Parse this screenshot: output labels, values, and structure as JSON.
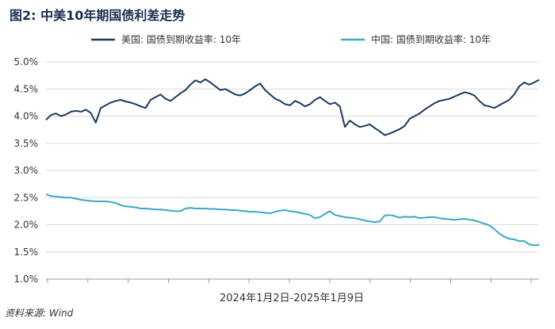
{
  "chart_data": {
    "type": "line",
    "title": "图2: 中美10年期国债利差走势",
    "xlabel": "2024年1月2日-2025年1月9日",
    "ylim": [
      0.01,
      0.05
    ],
    "y_ticks": [
      "1.0%",
      "1.5%",
      "2.0%",
      "2.5%",
      "3.0%",
      "3.5%",
      "4.0%",
      "4.5%",
      "5.0%"
    ],
    "grid": "horizontal",
    "legend_position": "top",
    "series": [
      {
        "name": "美国: 国债到期收益率: 10年",
        "color": "#1b3a5e",
        "values": [
          3.93,
          4.02,
          4.05,
          4.0,
          4.03,
          4.08,
          4.1,
          4.08,
          4.12,
          4.06,
          3.88,
          4.15,
          4.2,
          4.25,
          4.28,
          4.3,
          4.27,
          4.25,
          4.22,
          4.18,
          4.15,
          4.3,
          4.35,
          4.4,
          4.32,
          4.28,
          4.35,
          4.42,
          4.48,
          4.58,
          4.66,
          4.62,
          4.68,
          4.62,
          4.55,
          4.48,
          4.5,
          4.45,
          4.4,
          4.38,
          4.42,
          4.48,
          4.55,
          4.6,
          4.48,
          4.4,
          4.32,
          4.28,
          4.22,
          4.2,
          4.28,
          4.24,
          4.18,
          4.22,
          4.3,
          4.35,
          4.28,
          4.22,
          4.25,
          4.18,
          3.8,
          3.92,
          3.85,
          3.8,
          3.82,
          3.85,
          3.78,
          3.72,
          3.65,
          3.68,
          3.72,
          3.76,
          3.82,
          3.95,
          4.0,
          4.05,
          4.12,
          4.18,
          4.24,
          4.28,
          4.3,
          4.32,
          4.36,
          4.4,
          4.44,
          4.42,
          4.38,
          4.28,
          4.2,
          4.18,
          4.15,
          4.2,
          4.25,
          4.3,
          4.4,
          4.55,
          4.62,
          4.58,
          4.62,
          4.67
        ]
      },
      {
        "name": "中国: 国债到期收益率: 10年",
        "color": "#3aa8c9",
        "values": [
          2.56,
          2.53,
          2.52,
          2.51,
          2.5,
          2.5,
          2.48,
          2.46,
          2.45,
          2.44,
          2.43,
          2.43,
          2.43,
          2.42,
          2.4,
          2.36,
          2.34,
          2.33,
          2.32,
          2.3,
          2.3,
          2.29,
          2.28,
          2.28,
          2.27,
          2.26,
          2.25,
          2.25,
          2.3,
          2.31,
          2.3,
          2.3,
          2.3,
          2.29,
          2.29,
          2.28,
          2.28,
          2.27,
          2.27,
          2.26,
          2.25,
          2.24,
          2.24,
          2.23,
          2.22,
          2.21,
          2.24,
          2.26,
          2.27,
          2.25,
          2.24,
          2.22,
          2.2,
          2.18,
          2.12,
          2.14,
          2.2,
          2.25,
          2.18,
          2.16,
          2.14,
          2.13,
          2.12,
          2.1,
          2.08,
          2.06,
          2.05,
          2.06,
          2.17,
          2.18,
          2.16,
          2.13,
          2.15,
          2.14,
          2.15,
          2.12,
          2.13,
          2.14,
          2.14,
          2.12,
          2.11,
          2.1,
          2.09,
          2.1,
          2.11,
          2.09,
          2.08,
          2.05,
          2.02,
          1.99,
          1.92,
          1.84,
          1.78,
          1.74,
          1.73,
          1.7,
          1.7,
          1.64,
          1.62,
          1.63
        ]
      }
    ],
    "source": "资料来源: Wind"
  }
}
